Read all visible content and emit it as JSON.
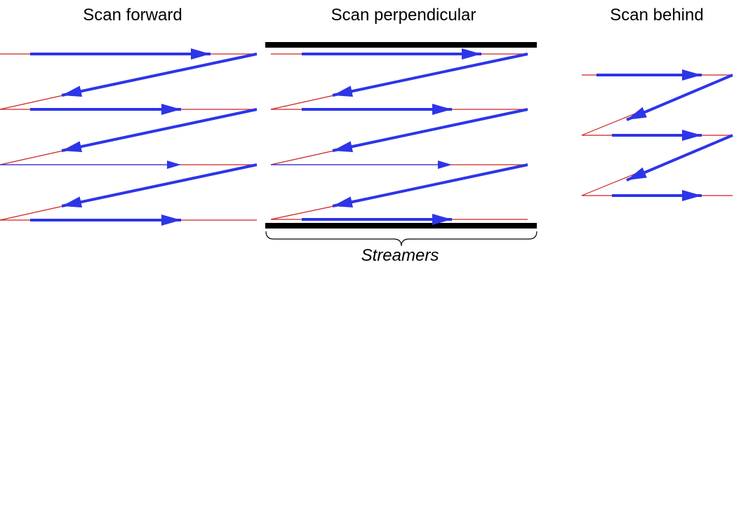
{
  "panels": [
    {
      "title": "Scan forward"
    },
    {
      "title": "Scan perpendicular"
    },
    {
      "title": "Scan behind"
    }
  ],
  "caption": "Streamers",
  "colors": {
    "scan_arrow": "#2d35e8",
    "path_line": "#cc2222",
    "streamer_bar": "#000000",
    "text": "#000000"
  }
}
